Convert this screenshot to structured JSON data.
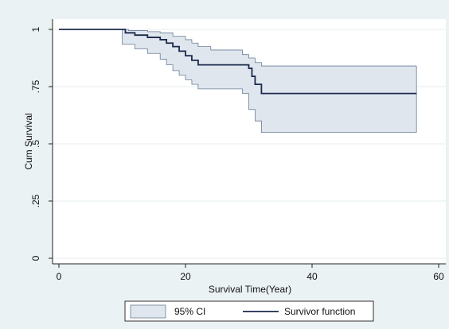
{
  "chart_data": {
    "type": "line",
    "title": "",
    "xlabel": "Survival Time(Year)",
    "ylabel": "Cum Survival",
    "xlim": [
      0,
      60
    ],
    "ylim": [
      0,
      1
    ],
    "x_ticks": [
      0,
      20,
      40,
      60
    ],
    "y_ticks": [
      0,
      0.25,
      0.5,
      0.75,
      1
    ],
    "y_tick_labels": [
      "0",
      ".25",
      ".5",
      ".75",
      "1"
    ],
    "grid": "horizontal",
    "legend": {
      "position": "bottom",
      "entries": [
        "95% CI",
        "Survivor function"
      ]
    },
    "colors": {
      "plot_background": "#ffffff",
      "outer_background": "#eaf2f3",
      "ci_fill": "#dfe6ee",
      "ci_edge": "#6b7d94",
      "survivor_line": "#1b2a4a"
    },
    "series": [
      {
        "name": "Survivor function",
        "style": "step",
        "points": [
          [
            0,
            1
          ],
          [
            10,
            1
          ],
          [
            10.5,
            0.985
          ],
          [
            12,
            0.975
          ],
          [
            14,
            0.965
          ],
          [
            16,
            0.955
          ],
          [
            17,
            0.94
          ],
          [
            18,
            0.925
          ],
          [
            19,
            0.905
          ],
          [
            20,
            0.885
          ],
          [
            21,
            0.865
          ],
          [
            22,
            0.845
          ],
          [
            30,
            0.83
          ],
          [
            30.5,
            0.795
          ],
          [
            31,
            0.76
          ],
          [
            32,
            0.72
          ],
          [
            56.5,
            0.72
          ]
        ]
      },
      {
        "name": "95% CI",
        "style": "band",
        "upper": [
          [
            0,
            1
          ],
          [
            10,
            1
          ],
          [
            11,
            0.995
          ],
          [
            14,
            0.99
          ],
          [
            16,
            0.985
          ],
          [
            18,
            0.97
          ],
          [
            20,
            0.955
          ],
          [
            21,
            0.94
          ],
          [
            22,
            0.925
          ],
          [
            24,
            0.91
          ],
          [
            29,
            0.89
          ],
          [
            30,
            0.875
          ],
          [
            31,
            0.855
          ],
          [
            32,
            0.84
          ],
          [
            56.5,
            0.84
          ]
        ],
        "lower": [
          [
            0,
            1
          ],
          [
            10,
            0.935
          ],
          [
            12,
            0.915
          ],
          [
            14,
            0.895
          ],
          [
            16,
            0.87
          ],
          [
            17,
            0.845
          ],
          [
            18,
            0.82
          ],
          [
            19,
            0.8
          ],
          [
            20,
            0.78
          ],
          [
            21,
            0.76
          ],
          [
            22,
            0.74
          ],
          [
            29,
            0.72
          ],
          [
            30,
            0.65
          ],
          [
            31,
            0.6
          ],
          [
            32,
            0.55
          ],
          [
            56.5,
            0.55
          ]
        ]
      }
    ]
  }
}
